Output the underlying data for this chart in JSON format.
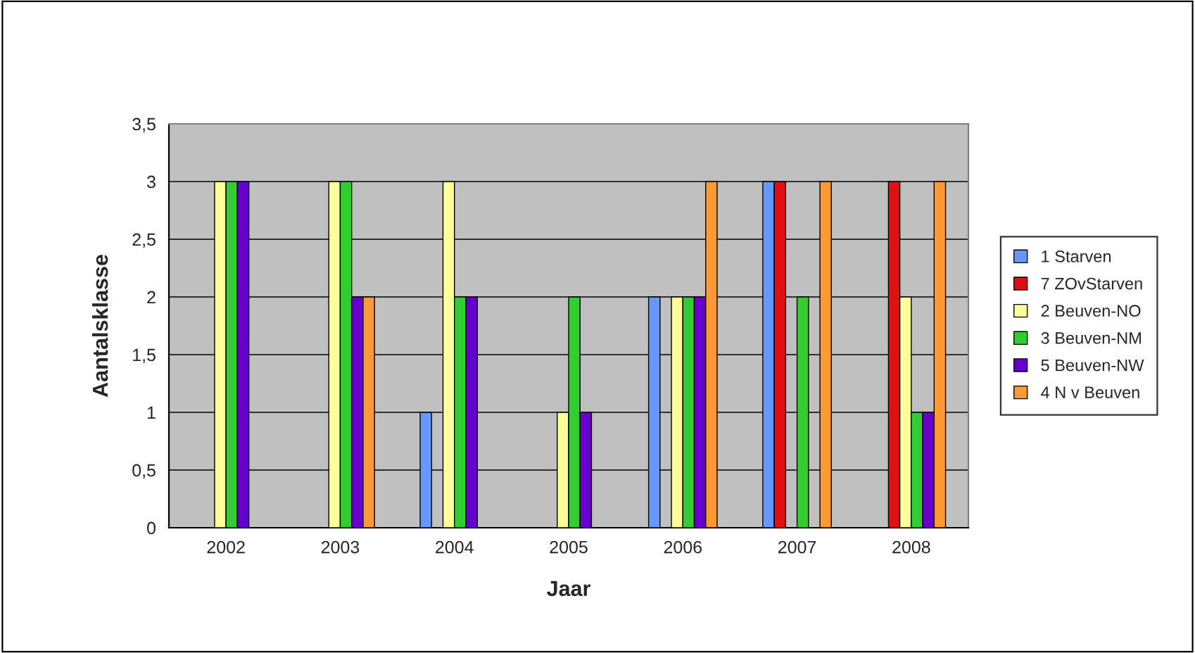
{
  "chart_data": {
    "type": "bar",
    "xlabel": "Jaar",
    "ylabel": "Aantalsklasse",
    "categories": [
      "2002",
      "2003",
      "2004",
      "2005",
      "2006",
      "2007",
      "2008"
    ],
    "series": [
      {
        "name": "1 Starven",
        "color": "#6699ff",
        "values": [
          null,
          null,
          1,
          null,
          2,
          3,
          null
        ]
      },
      {
        "name": "7 ZOvStarven",
        "color": "#dd1111",
        "values": [
          null,
          null,
          null,
          null,
          null,
          3,
          3
        ]
      },
      {
        "name": "2 Beuven-NO",
        "color": "#ffff99",
        "values": [
          3,
          3,
          3,
          1,
          2,
          null,
          2
        ]
      },
      {
        "name": "3 Beuven-NM",
        "color": "#33cc33",
        "values": [
          3,
          3,
          2,
          2,
          2,
          2,
          1
        ]
      },
      {
        "name": "5 Beuven-NW",
        "color": "#6600cc",
        "values": [
          3,
          2,
          2,
          1,
          2,
          null,
          1
        ]
      },
      {
        "name": "4 N v Beuven",
        "color": "#ff9933",
        "values": [
          null,
          2,
          null,
          null,
          3,
          3,
          3
        ]
      }
    ],
    "ylim": [
      0,
      3.5
    ],
    "yticks": [
      0,
      {
        "value": 0.5,
        "label": "0,5"
      },
      1,
      {
        "value": 1.5,
        "label": "1,5"
      },
      2,
      {
        "value": 2.5,
        "label": "2,5"
      },
      3,
      {
        "value": 3.5,
        "label": "3,5"
      }
    ],
    "grid": "y",
    "legend": "right"
  }
}
